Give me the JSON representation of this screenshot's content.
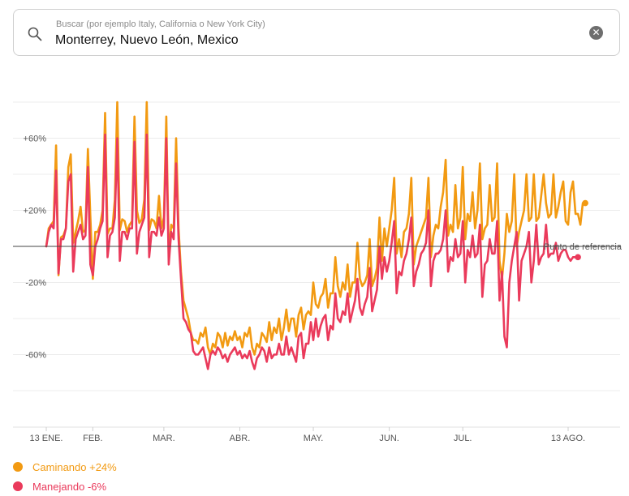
{
  "search": {
    "placeholder": "Buscar (por ejemplo Italy, California o New York City)",
    "value": "Monterrey, Nuevo León, Mexico",
    "search_icon": "search-icon",
    "clear_icon": "close-circle-icon"
  },
  "chart_data": {
    "type": "line",
    "y_ticks": [
      "+60%",
      "+20%",
      "-20%",
      "-60%"
    ],
    "y_tick_values": [
      60,
      20,
      -20,
      -60
    ],
    "ylim": [
      -80,
      80
    ],
    "x_ticks": [
      "13 ENE.",
      "FEB.",
      "MAR.",
      "ABR.",
      "MAY.",
      "JUN.",
      "JUL.",
      "13 AGO."
    ],
    "x_tick_days": [
      0,
      19,
      48,
      79,
      109,
      140,
      170,
      213
    ],
    "reference_label": "Punto de referencia",
    "reference_value": 0,
    "x_start_day": 0,
    "series": [
      {
        "name": "Caminando +24%",
        "color": "#f29a12",
        "end_value": 24,
        "values": [
          0,
          10,
          12,
          14,
          56,
          -16,
          5,
          6,
          10,
          44,
          51,
          2,
          8,
          14,
          22,
          8,
          9,
          54,
          17,
          -18,
          8,
          8,
          12,
          20,
          74,
          7,
          10,
          10,
          26,
          80,
          9,
          15,
          14,
          8,
          12,
          14,
          72,
          20,
          13,
          15,
          26,
          80,
          9,
          15,
          14,
          10,
          28,
          10,
          16,
          72,
          -5,
          12,
          10,
          60,
          10,
          -14,
          -30,
          -35,
          -40,
          -48,
          -52,
          -52,
          -54,
          -48,
          -50,
          -45,
          -56,
          -60,
          -54,
          -56,
          -48,
          -50,
          -56,
          -48,
          -55,
          -50,
          -52,
          -47,
          -52,
          -50,
          -56,
          -48,
          -50,
          -45,
          -56,
          -60,
          -54,
          -56,
          -48,
          -50,
          -53,
          -42,
          -52,
          -45,
          -48,
          -40,
          -52,
          -45,
          -35,
          -47,
          -40,
          -40,
          -50,
          -38,
          -34,
          -46,
          -38,
          -36,
          -38,
          -20,
          -32,
          -34,
          -28,
          -26,
          -18,
          -34,
          -26,
          -26,
          -6,
          -22,
          -28,
          -20,
          -24,
          -10,
          -28,
          -20,
          -20,
          2,
          -18,
          -22,
          -20,
          -16,
          4,
          -22,
          -18,
          -12,
          16,
          -8,
          10,
          0,
          10,
          20,
          38,
          -4,
          4,
          -6,
          8,
          10,
          18,
          38,
          -10,
          0,
          4,
          8,
          12,
          16,
          38,
          -6,
          6,
          12,
          10,
          22,
          30,
          48,
          6,
          12,
          8,
          34,
          10,
          16,
          44,
          4,
          18,
          14,
          30,
          10,
          20,
          46,
          4,
          10,
          12,
          34,
          14,
          16,
          46,
          -8,
          -18,
          -4,
          18,
          8,
          14,
          40,
          0,
          8,
          14,
          20,
          40,
          14,
          16,
          40,
          14,
          16,
          28,
          40,
          24,
          16,
          18,
          40,
          16,
          22,
          30,
          36,
          14,
          12,
          30,
          36,
          18,
          18,
          12,
          24
        ]
      },
      {
        "name": "Manejando -6%",
        "color": "#ea3a5b",
        "end_value": -6,
        "values": [
          0,
          8,
          12,
          10,
          42,
          -15,
          4,
          4,
          10,
          36,
          40,
          -14,
          4,
          8,
          12,
          4,
          6,
          44,
          -10,
          -16,
          0,
          4,
          10,
          14,
          62,
          -6,
          6,
          8,
          16,
          60,
          -8,
          8,
          8,
          4,
          10,
          10,
          58,
          -4,
          8,
          12,
          16,
          62,
          -6,
          8,
          8,
          6,
          16,
          6,
          10,
          60,
          -10,
          8,
          4,
          46,
          4,
          -18,
          -40,
          -42,
          -46,
          -48,
          -58,
          -60,
          -60,
          -58,
          -56,
          -62,
          -68,
          -60,
          -58,
          -60,
          -56,
          -58,
          -62,
          -60,
          -64,
          -60,
          -58,
          -56,
          -60,
          -58,
          -62,
          -60,
          -62,
          -58,
          -64,
          -68,
          -62,
          -60,
          -56,
          -58,
          -64,
          -56,
          -62,
          -60,
          -60,
          -54,
          -60,
          -60,
          -50,
          -60,
          -56,
          -60,
          -64,
          -50,
          -48,
          -62,
          -54,
          -54,
          -42,
          -52,
          -40,
          -50,
          -44,
          -40,
          -38,
          -52,
          -44,
          -46,
          -26,
          -40,
          -42,
          -36,
          -38,
          -26,
          -42,
          -36,
          -30,
          -18,
          -34,
          -38,
          -32,
          -28,
          -12,
          -36,
          -30,
          -24,
          0,
          -18,
          -6,
          -14,
          -8,
          2,
          14,
          -26,
          -14,
          -16,
          -8,
          -4,
          4,
          16,
          -22,
          -14,
          -10,
          -4,
          -2,
          2,
          20,
          -22,
          -8,
          -4,
          -4,
          -2,
          4,
          20,
          -14,
          -6,
          -8,
          4,
          -6,
          -4,
          14,
          -20,
          -2,
          -6,
          6,
          -6,
          -4,
          12,
          -28,
          -10,
          -8,
          4,
          -4,
          -4,
          14,
          -30,
          -14,
          -50,
          -56,
          -20,
          -8,
          0,
          8,
          -30,
          -8,
          -4,
          0,
          8,
          -20,
          -8,
          12,
          -10,
          -6,
          -4,
          12,
          -6,
          -4,
          -4,
          2,
          -8,
          -4,
          -2,
          -2,
          -6,
          -8,
          -6,
          -6
        ]
      }
    ]
  },
  "legend": {
    "walking_label": "Caminando +24%",
    "driving_label": "Manejando -6%"
  }
}
